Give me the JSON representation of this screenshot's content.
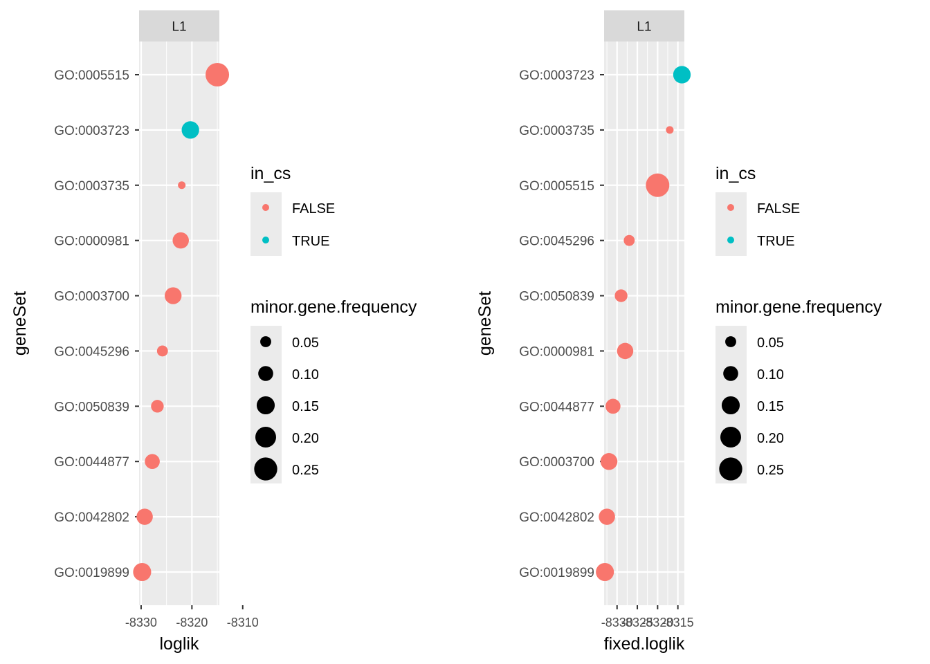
{
  "chart_data": [
    {
      "type": "scatter",
      "facet": "L1",
      "xlabel": "loglik",
      "ylabel": "geneSet",
      "x_ticks": [
        -8330,
        -8320,
        -8310
      ],
      "x_tick_labels": [
        "-8330",
        "-8320",
        "-8310"
      ],
      "xlim": [
        -8330.4,
        -8314.6
      ],
      "categories": [
        "GO:0019899",
        "GO:0042802",
        "GO:0044877",
        "GO:0050839",
        "GO:0045296",
        "GO:0003700",
        "GO:0000981",
        "GO:0003735",
        "GO:0003723",
        "GO:0005515"
      ],
      "points": [
        {
          "geneSet": "GO:0005515",
          "x": -8315.0,
          "in_cs": "FALSE",
          "freq": 0.26
        },
        {
          "geneSet": "GO:0003723",
          "x": -8320.3,
          "in_cs": "TRUE",
          "freq": 0.14
        },
        {
          "geneSet": "GO:0003735",
          "x": -8322.0,
          "in_cs": "FALSE",
          "freq": 0.02
        },
        {
          "geneSet": "GO:0000981",
          "x": -8322.2,
          "in_cs": "FALSE",
          "freq": 0.12
        },
        {
          "geneSet": "GO:0003700",
          "x": -8323.7,
          "in_cs": "FALSE",
          "freq": 0.13
        },
        {
          "geneSet": "GO:0045296",
          "x": -8325.8,
          "in_cs": "FALSE",
          "freq": 0.05
        },
        {
          "geneSet": "GO:0050839",
          "x": -8326.8,
          "in_cs": "FALSE",
          "freq": 0.07
        },
        {
          "geneSet": "GO:0044877",
          "x": -8327.8,
          "in_cs": "FALSE",
          "freq": 0.1
        },
        {
          "geneSet": "GO:0042802",
          "x": -8329.3,
          "in_cs": "FALSE",
          "freq": 0.12
        },
        {
          "geneSet": "GO:0019899",
          "x": -8329.8,
          "in_cs": "FALSE",
          "freq": 0.15
        }
      ],
      "legend": {
        "color_title": "in_cs",
        "color_entries": [
          "FALSE",
          "TRUE"
        ],
        "size_title": "minor.gene.frequency",
        "size_entries": [
          "0.05",
          "0.10",
          "0.15",
          "0.20",
          "0.25"
        ],
        "position": "right"
      }
    },
    {
      "type": "scatter",
      "facet": "L1",
      "xlabel": "fixed.loglik",
      "ylabel": "geneSet",
      "x_ticks": [
        -8330,
        -8325,
        -8320,
        -8315
      ],
      "x_tick_labels": [
        "-8330",
        "-8325",
        "-8320",
        "-8315"
      ],
      "xlim": [
        -8333.2,
        -8313.4
      ],
      "categories": [
        "GO:0019899",
        "GO:0042802",
        "GO:0003700",
        "GO:0044877",
        "GO:0000981",
        "GO:0050839",
        "GO:0045296",
        "GO:0005515",
        "GO:0003735",
        "GO:0003723"
      ],
      "points": [
        {
          "geneSet": "GO:0003723",
          "x": -8314.0,
          "in_cs": "TRUE",
          "freq": 0.14
        },
        {
          "geneSet": "GO:0003735",
          "x": -8317.0,
          "in_cs": "FALSE",
          "freq": 0.02
        },
        {
          "geneSet": "GO:0005515",
          "x": -8320.0,
          "in_cs": "FALSE",
          "freq": 0.26
        },
        {
          "geneSet": "GO:0045296",
          "x": -8327.0,
          "in_cs": "FALSE",
          "freq": 0.05
        },
        {
          "geneSet": "GO:0050839",
          "x": -8329.0,
          "in_cs": "FALSE",
          "freq": 0.07
        },
        {
          "geneSet": "GO:0000981",
          "x": -8328.0,
          "in_cs": "FALSE",
          "freq": 0.12
        },
        {
          "geneSet": "GO:0044877",
          "x": -8331.0,
          "in_cs": "FALSE",
          "freq": 0.1
        },
        {
          "geneSet": "GO:0003700",
          "x": -8332.0,
          "in_cs": "FALSE",
          "freq": 0.13
        },
        {
          "geneSet": "GO:0042802",
          "x": -8332.5,
          "in_cs": "FALSE",
          "freq": 0.12
        },
        {
          "geneSet": "GO:0019899",
          "x": -8333.0,
          "in_cs": "FALSE",
          "freq": 0.15
        }
      ],
      "legend": {
        "color_title": "in_cs",
        "color_entries": [
          "FALSE",
          "TRUE"
        ],
        "size_title": "minor.gene.frequency",
        "size_entries": [
          "0.05",
          "0.10",
          "0.15",
          "0.20",
          "0.25"
        ],
        "position": "right"
      }
    }
  ],
  "colors": {
    "FALSE": "#F8766D",
    "TRUE": "#00BFC4",
    "panel_background": "#EBEBEB",
    "strip_background": "#D9D9D9",
    "grid": "#FFFFFF"
  },
  "size_scale": {
    "min_freq": 0.0,
    "max_freq": 0.26
  }
}
